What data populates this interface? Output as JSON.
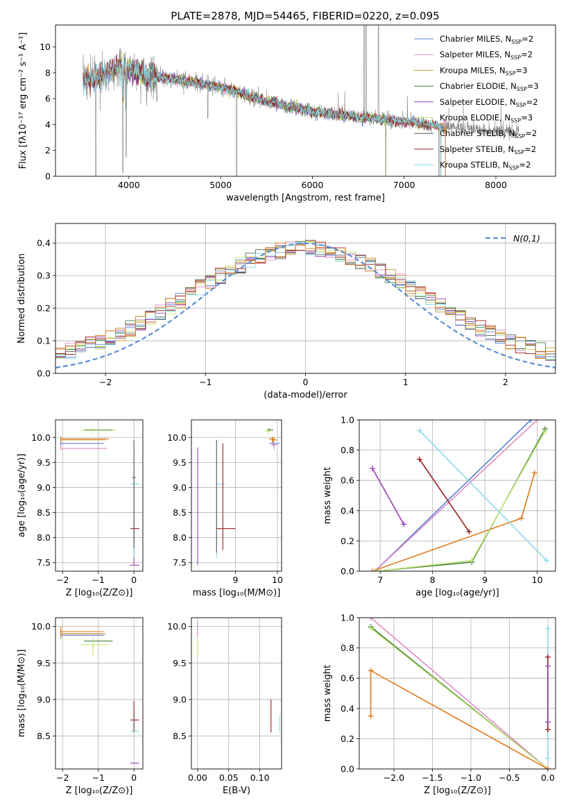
{
  "title": "PLATE=2878, MJD=54465, FIBERID=0220, z=0.095",
  "colors": {
    "c0": "#5b7fd4",
    "c1": "#e08cc4",
    "c2": "#c8962a",
    "c3": "#3e7e3a",
    "c4": "#9a3fb5",
    "c5": "#c8e67a",
    "c6": "#5a5a5a",
    "c7": "#9a1e1e",
    "c8": "#86dbe6",
    "c9": "#e07a1c",
    "data": "#808080",
    "gauss": "#5b8fd4"
  },
  "chart_data": [
    {
      "id": "spectrum",
      "type": "line",
      "title": "PLATE=2878, MJD=54465, FIBERID=0220, z=0.095",
      "xlabel": "wavelength [Angstrom, rest frame]",
      "ylabel": "Flux [fλ10⁻¹⁷ erg cm⁻² s⁻¹ A⁻¹]",
      "xlim": [
        3200,
        8650
      ],
      "ylim": [
        0,
        11.7
      ],
      "xticks": [
        4000,
        5000,
        6000,
        7000,
        8000
      ],
      "yticks": [
        0,
        2,
        4,
        6,
        8,
        10
      ],
      "legend_position": "top-right",
      "legend": [
        {
          "label": "Chabrier MILES, N",
          "sub": "SSP",
          "suffix": "=2",
          "color": "c0"
        },
        {
          "label": "Salpeter MILES, N",
          "sub": "SSP",
          "suffix": "=2",
          "color": "c1"
        },
        {
          "label": "Kroupa MILES, N",
          "sub": "SSP",
          "suffix": "=3",
          "color": "c2"
        },
        {
          "label": "Chabrier ELODIE, N",
          "sub": "SSP",
          "suffix": "=3",
          "color": "c3"
        },
        {
          "label": "Salpeter ELODIE, N",
          "sub": "SSP",
          "suffix": "=2",
          "color": "c4"
        },
        {
          "label": "Kroupa ELODIE, N",
          "sub": "SSP",
          "suffix": "=3",
          "color": "c5"
        },
        {
          "label": "Chabrier STELIB, N",
          "sub": "SSP",
          "suffix": "=2",
          "color": "c6"
        },
        {
          "label": "Salpeter STELIB, N",
          "sub": "SSP",
          "suffix": "=2",
          "color": "c7"
        },
        {
          "label": "Kroupa STELIB, N",
          "sub": "SSP",
          "suffix": "=2",
          "color": "c8"
        }
      ],
      "continuum": [
        [
          3500,
          7.4
        ],
        [
          3700,
          7.7
        ],
        [
          3900,
          8.5
        ],
        [
          4000,
          8.2
        ],
        [
          4200,
          7.8
        ],
        [
          4500,
          7.5
        ],
        [
          5000,
          6.9
        ],
        [
          5500,
          5.8
        ],
        [
          6000,
          5.0
        ],
        [
          6500,
          4.6
        ],
        [
          7000,
          4.2
        ],
        [
          7500,
          3.8
        ],
        [
          8000,
          3.5
        ],
        [
          8250,
          3.4
        ]
      ],
      "data_range": [
        3500,
        8250
      ],
      "model_ranges": [
        [
          3550,
          7450
        ],
        [
          3550,
          7450
        ],
        [
          3550,
          7450
        ],
        [
          3900,
          6800
        ],
        [
          3900,
          6800
        ],
        [
          3900,
          6800
        ],
        [
          3500,
          7400
        ],
        [
          3500,
          7400
        ],
        [
          3500,
          7400
        ]
      ],
      "features": [
        {
          "x": 3640,
          "y": 0
        },
        {
          "x": 3935,
          "y": 0.3
        },
        {
          "x": 3970,
          "y": 1.5
        },
        {
          "x": 4305,
          "y": 5.8
        },
        {
          "x": 4860,
          "y": 4.5
        },
        {
          "x": 5175,
          "y": 0
        },
        {
          "x": 6565,
          "y": 12
        },
        {
          "x": 6585,
          "y": 12
        },
        {
          "x": 6720,
          "y": 12
        },
        {
          "x": 6800,
          "y": 0.2
        },
        {
          "x": 7380,
          "y": 0
        }
      ]
    },
    {
      "id": "residuals",
      "type": "histogram",
      "xlabel": "(data-model)/error",
      "ylabel": "Normed distribution",
      "xlim": [
        -2.5,
        2.5
      ],
      "ylim": [
        0,
        0.46
      ],
      "xticks": [
        -2,
        -1,
        0,
        1,
        2
      ],
      "yticks": [
        0.0,
        0.1,
        0.2,
        0.3,
        0.4
      ],
      "legend_position": "top-right",
      "gauss_label": "N(0,1)",
      "bins": [
        -2.5,
        2.5,
        50
      ],
      "series_colors": [
        "c0",
        "c1",
        "c2",
        "c3",
        "c4",
        "c5",
        "c6",
        "c7",
        "c8",
        "c9"
      ]
    },
    {
      "id": "p1",
      "type": "errorbar",
      "xlabel": "Z [log₁₀(Z/Z⊙)]",
      "ylabel": "age  [log₁₀(age/yr)]",
      "xlim": [
        -2.2,
        0.25
      ],
      "ylim": [
        7.33,
        10.35
      ],
      "xticks": [
        -2,
        -1,
        0
      ],
      "yticks": [
        7.5,
        8.0,
        8.5,
        9.0,
        9.5,
        10.0
      ],
      "marks": [
        {
          "c": "c0",
          "x": -2.05,
          "y": 9.88,
          "x0": -2.05,
          "x1": -0.85,
          "y0": 9.83,
          "y1": 9.93
        },
        {
          "c": "c1",
          "x": -2.05,
          "y": 9.78,
          "x0": -2.05,
          "x1": -0.75,
          "y0": 9.73,
          "y1": 9.85
        },
        {
          "c": "c2",
          "x": -2.05,
          "y": 9.95,
          "x0": -2.05,
          "x1": -0.8,
          "y0": 9.9,
          "y1": 10.0
        },
        {
          "c": "c3",
          "x": -1.15,
          "y": 10.15,
          "x0": -1.4,
          "x1": -0.6,
          "y0": 10.12,
          "y1": 10.18
        },
        {
          "c": "c5",
          "x": -1.15,
          "y": 10.14,
          "x0": -1.5,
          "x1": -0.5,
          "y0": 10.07,
          "y1": 10.18
        },
        {
          "c": "c9",
          "x": -2.05,
          "y": 9.97,
          "x0": -2.05,
          "x1": -0.7,
          "y0": 9.92,
          "y1": 10.02
        },
        {
          "c": "c4",
          "x": 0.0,
          "y": 7.45,
          "x0": -0.12,
          "x1": 0.15,
          "y0": 7.45,
          "y1": 9.3
        },
        {
          "c": "c7",
          "x": 0.0,
          "y": 8.18,
          "x0": -0.1,
          "x1": 0.15,
          "y0": 7.9,
          "y1": 8.4
        },
        {
          "c": "c8",
          "x": 0.0,
          "y": 9.07,
          "x0": -0.1,
          "x1": 0.15,
          "y0": 7.6,
          "y1": 9.9
        },
        {
          "c": "c6",
          "x": 0.0,
          "y": 9.2,
          "x0": -0.05,
          "x1": 0.05,
          "y0": 7.8,
          "y1": 9.95
        }
      ]
    },
    {
      "id": "p2",
      "type": "errorbar",
      "xlabel": "mass [log₁₀(M/M⊙)]",
      "ylabel": "",
      "xlim": [
        7.95,
        10.1
      ],
      "ylim": [
        7.33,
        10.35
      ],
      "xticks": [
        9,
        10
      ],
      "yticks": [
        7.5,
        8.0,
        8.5,
        9.0,
        9.5,
        10.0
      ],
      "marks": [
        {
          "c": "c4",
          "x": 8.1,
          "y": 7.5,
          "x0": 8.1,
          "x1": 8.1,
          "y0": 7.45,
          "y1": 9.8
        },
        {
          "c": "c8",
          "x": 8.55,
          "y": 9.07,
          "x0": 8.55,
          "x1": 8.75,
          "y0": 7.6,
          "y1": 9.1
        },
        {
          "c": "c6",
          "x": 8.55,
          "y": 9.2,
          "x0": 8.55,
          "x1": 8.55,
          "y0": 7.7,
          "y1": 9.95
        },
        {
          "c": "c7",
          "x": 8.7,
          "y": 8.18,
          "x0": 8.55,
          "x1": 9.0,
          "y0": 7.75,
          "y1": 9.88
        },
        {
          "c": "c0",
          "x": 9.9,
          "y": 9.88,
          "x0": 9.8,
          "x1": 10.05,
          "y0": 9.83,
          "y1": 9.93
        },
        {
          "c": "c1",
          "x": 9.92,
          "y": 9.85,
          "x0": 9.85,
          "x1": 10.0,
          "y0": 9.75,
          "y1": 9.95
        },
        {
          "c": "c2",
          "x": 9.9,
          "y": 9.95,
          "x0": 9.85,
          "x1": 10.0,
          "y0": 9.9,
          "y1": 10.0
        },
        {
          "c": "c3",
          "x": 9.8,
          "y": 10.15,
          "x0": 9.75,
          "x1": 9.9,
          "y0": 10.12,
          "y1": 10.18
        },
        {
          "c": "c5",
          "x": 9.78,
          "y": 10.12,
          "x0": 9.7,
          "x1": 9.85,
          "y0": 10.05,
          "y1": 10.18
        },
        {
          "c": "c9",
          "x": 9.88,
          "y": 9.97,
          "x0": 9.8,
          "x1": 9.95,
          "y0": 9.9,
          "y1": 10.02
        }
      ]
    },
    {
      "id": "p3",
      "type": "line",
      "xlabel": "age  [log₁₀(age/yr)]",
      "ylabel": "mass weight",
      "xlim": [
        6.6,
        10.35
      ],
      "ylim": [
        0,
        1.0
      ],
      "xticks": [
        7,
        8,
        9,
        10
      ],
      "yticks": [
        0.0,
        0.2,
        0.4,
        0.6,
        0.8,
        1.0
      ],
      "series": [
        {
          "c": "c0",
          "points": [
            [
              6.9,
              0.0
            ],
            [
              9.88,
              1.0
            ]
          ]
        },
        {
          "c": "c1",
          "points": [
            [
              6.9,
              0.0
            ],
            [
              10.0,
              1.0
            ]
          ]
        },
        {
          "c": "c9",
          "points": [
            [
              6.85,
              0.0
            ],
            [
              9.7,
              0.35
            ],
            [
              9.95,
              0.65
            ]
          ]
        },
        {
          "c": "c3",
          "points": [
            [
              6.9,
              0.0
            ],
            [
              8.75,
              0.06
            ],
            [
              10.15,
              0.94
            ]
          ]
        },
        {
          "c": "c5",
          "points": [
            [
              6.9,
              0.0
            ],
            [
              8.75,
              0.07
            ],
            [
              10.14,
              0.92
            ]
          ]
        },
        {
          "c": "c4",
          "points": [
            [
              6.85,
              0.68
            ],
            [
              7.45,
              0.31
            ]
          ]
        },
        {
          "c": "c7",
          "points": [
            [
              7.75,
              0.74
            ],
            [
              8.7,
              0.26
            ]
          ]
        },
        {
          "c": "c8",
          "points": [
            [
              7.75,
              0.93
            ],
            [
              10.18,
              0.07
            ]
          ]
        }
      ]
    },
    {
      "id": "p4",
      "type": "errorbar",
      "xlabel": "Z [log₁₀(Z/Z⊙)]",
      "ylabel": "mass [log₁₀(M/M⊙)]",
      "xlim": [
        -2.2,
        0.25
      ],
      "ylim": [
        8.05,
        10.12
      ],
      "xticks": [
        -2,
        -1,
        0
      ],
      "yticks": [
        8.5,
        9.0,
        9.5,
        10.0
      ],
      "marks": [
        {
          "c": "c0",
          "x": -2.05,
          "y": 9.88,
          "x0": -2.05,
          "x1": -0.85,
          "y0": 9.83,
          "y1": 9.93
        },
        {
          "c": "c1",
          "x": -2.05,
          "y": 9.9,
          "x0": -2.05,
          "x1": -0.8,
          "y0": 9.85,
          "y1": 9.95
        },
        {
          "c": "c2",
          "x": -2.05,
          "y": 9.9,
          "x0": -2.05,
          "x1": -0.8,
          "y0": 9.85,
          "y1": 10.0
        },
        {
          "c": "c3",
          "x": -1.15,
          "y": 9.8,
          "x0": -1.4,
          "x1": -0.6,
          "y0": 9.7,
          "y1": 9.85
        },
        {
          "c": "c5",
          "x": -1.15,
          "y": 9.75,
          "x0": -1.5,
          "x1": -0.7,
          "y0": 9.6,
          "y1": 9.85
        },
        {
          "c": "c9",
          "x": -2.05,
          "y": 9.93,
          "x0": -2.05,
          "x1": -0.85,
          "y0": 9.88,
          "y1": 9.98
        },
        {
          "c": "c4",
          "x": 0.0,
          "y": 8.13,
          "x0": -0.1,
          "x1": 0.15,
          "y0": 8.13,
          "y1": 8.13
        },
        {
          "c": "c7",
          "x": 0.0,
          "y": 8.72,
          "x0": -0.1,
          "x1": 0.15,
          "y0": 8.55,
          "y1": 8.98
        },
        {
          "c": "c8",
          "x": 0.0,
          "y": 8.57,
          "x0": -0.1,
          "x1": 0.15,
          "y0": 8.57,
          "y1": 8.57
        },
        {
          "c": "c6",
          "x": 0.0,
          "y": 8.6,
          "x0": 0.0,
          "x1": 0.0,
          "y0": 8.55,
          "y1": 8.8
        }
      ]
    },
    {
      "id": "p5",
      "type": "errorbar",
      "xlabel": "E(B-V)",
      "ylabel": "",
      "xlim": [
        -0.01,
        0.135
      ],
      "ylim": [
        8.05,
        10.12
      ],
      "xticks": [
        0.0,
        0.05,
        0.1
      ],
      "yticks": [
        8.5,
        9.0,
        9.5,
        10.0
      ],
      "xtick_labels": [
        "0.00",
        "0.05",
        "0.10"
      ],
      "marks": [
        {
          "c": "c0",
          "x": 0.0,
          "y": 9.9,
          "x0": 0.0,
          "x1": 0.0,
          "y0": 9.8,
          "y1": 10.05
        },
        {
          "c": "c5",
          "x": 0.0,
          "y": 9.75,
          "x0": 0.0,
          "x1": 0.0,
          "y0": 9.6,
          "y1": 9.9
        },
        {
          "c": "c1",
          "x": 0.0,
          "y": 9.95,
          "x0": 0.0,
          "x1": 0.0,
          "y0": 9.85,
          "y1": 10.02
        },
        {
          "c": "c7",
          "x": 0.118,
          "y": 8.72,
          "x0": 0.118,
          "x1": 0.118,
          "y0": 8.55,
          "y1": 9.0
        },
        {
          "c": "c8",
          "x": 0.132,
          "y": 8.6,
          "x0": 0.132,
          "x1": 0.132,
          "y0": 8.55,
          "y1": 8.78
        }
      ]
    },
    {
      "id": "p6",
      "type": "line",
      "xlabel": "Z [log₁₀(Z/Z⊙)]",
      "ylabel": "mass weight",
      "xlim": [
        -2.45,
        0.1
      ],
      "ylim": [
        0,
        1.0
      ],
      "xticks": [
        -2.0,
        -1.5,
        -1.0,
        -0.5,
        0.0
      ],
      "yticks": [
        0.0,
        0.2,
        0.4,
        0.6,
        0.8,
        1.0
      ],
      "xtick_labels": [
        "−2.0",
        "−1.5",
        "−1.0",
        "−0.5",
        "0.0"
      ],
      "series": [
        {
          "c": "c1",
          "points": [
            [
              -2.3,
              1.0
            ],
            [
              0.0,
              0.0
            ]
          ]
        },
        {
          "c": "c3",
          "points": [
            [
              -2.3,
              0.94
            ],
            [
              0.0,
              0.0
            ]
          ]
        },
        {
          "c": "c5",
          "points": [
            [
              -2.3,
              0.93
            ],
            [
              0.0,
              0.0
            ]
          ]
        },
        {
          "c": "c9",
          "points": [
            [
              -2.3,
              0.35
            ],
            [
              -2.3,
              0.65
            ],
            [
              0.0,
              0.0
            ]
          ]
        },
        {
          "c": "c8",
          "points": [
            [
              0.0,
              0.07
            ],
            [
              0.0,
              0.93
            ]
          ]
        },
        {
          "c": "c7",
          "points": [
            [
              0.0,
              0.26
            ],
            [
              0.0,
              0.74
            ]
          ]
        },
        {
          "c": "c4",
          "points": [
            [
              0.0,
              0.31
            ],
            [
              0.0,
              0.68
            ]
          ]
        }
      ]
    }
  ]
}
